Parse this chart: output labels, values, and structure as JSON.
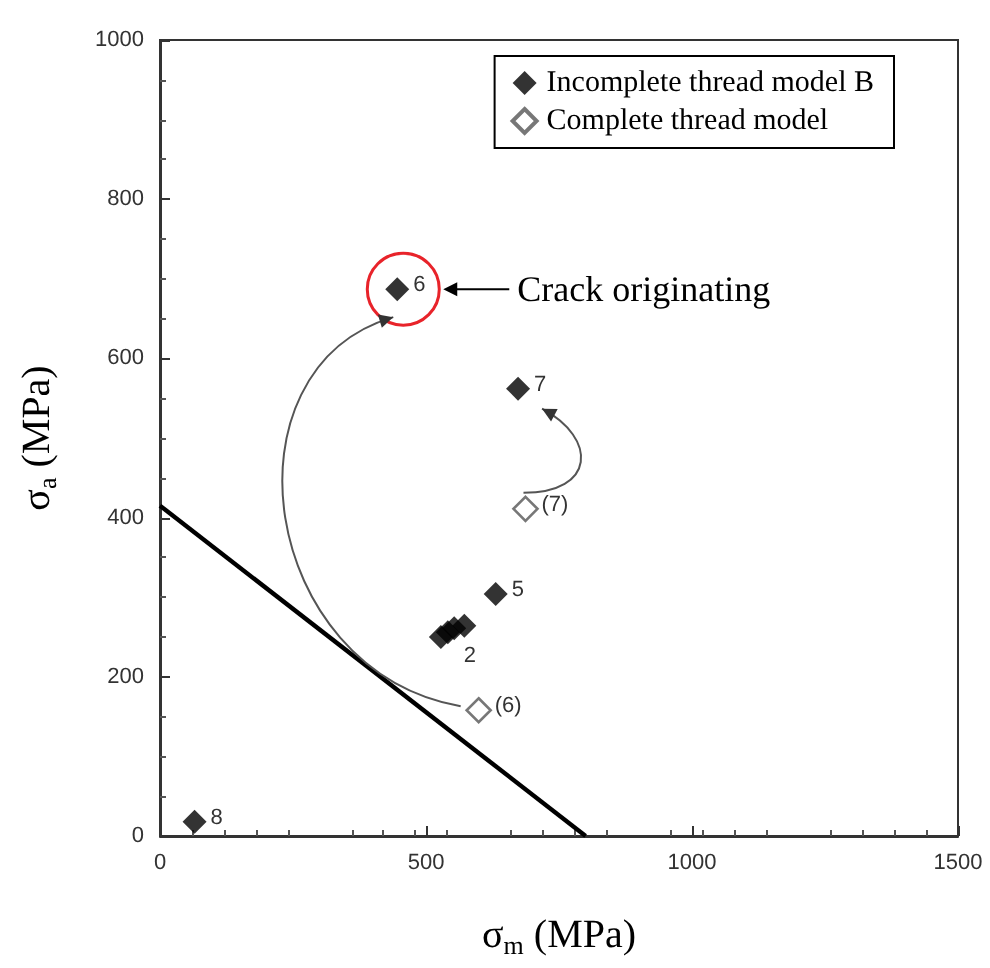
{
  "chart_data": {
    "type": "scatter",
    "xlabel": "σ$_{m}$ (MPa)",
    "ylabel": "σ$_{a}$ (MPa)",
    "xlim": [
      0,
      1500
    ],
    "xticks": [
      0,
      500,
      1000,
      1500
    ],
    "ylim": [
      0,
      1000
    ],
    "yticks": [
      0,
      200,
      400,
      600,
      800,
      1000
    ],
    "marker": "diamond",
    "legend": "top right",
    "grid": false,
    "series": [
      {
        "name": "Incomplete thread model B",
        "color": "#000000",
        "x": [
          446,
          673,
          631,
          528,
          541,
          553,
          572,
          65
        ],
        "values": [
          687,
          562,
          304,
          250,
          256,
          261,
          264,
          18
        ]
      },
      {
        "name": "Complete thread model",
        "color": "#555555",
        "x": [
          599,
          687
        ],
        "values": [
          158,
          411
        ]
      },
      {
        "type": "line",
        "color": "#000000",
        "marker": "none",
        "x": [
          0,
          800
        ],
        "values": [
          415,
          0
        ]
      }
    ],
    "annotations": [
      {
        "text": "6",
        "x": 446,
        "y": 687
      },
      {
        "text": "7",
        "x": 673,
        "y": 562
      },
      {
        "text": "5",
        "x": 631,
        "y": 304
      },
      {
        "text": "2",
        "x": 541,
        "y": 256
      },
      {
        "text": "8",
        "x": 65,
        "y": 18
      },
      {
        "text": "(6)",
        "x": 599,
        "y": 158
      },
      {
        "text": "(7)",
        "x": 687,
        "y": 411
      },
      "Crack originating"
    ]
  }
}
